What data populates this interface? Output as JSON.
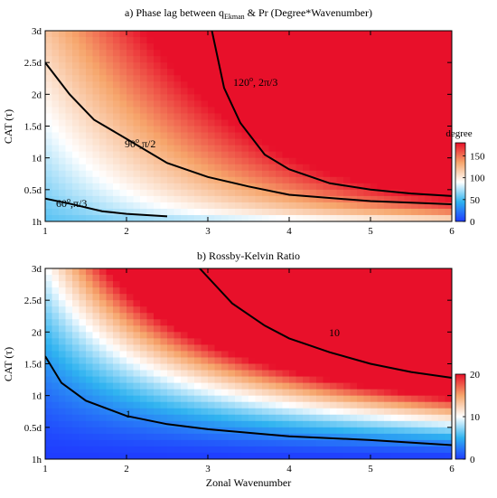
{
  "chart_data": [
    {
      "type": "heatmap",
      "title_prefix": "a) Phase lag between q",
      "title_subscript": "Ekman",
      "title_suffix": " & Pr (Degree*Wavenumber)",
      "xlabel": "",
      "ylabel": "CAT (τ)",
      "xlim": [
        1,
        6
      ],
      "x_ticks": [
        "1",
        "2",
        "3",
        "4",
        "5",
        "6"
      ],
      "ylim": [
        "1h",
        "3d"
      ],
      "y_ticks": [
        "1h",
        "0.5d",
        "1d",
        "1.5d",
        "2d",
        "2.5d",
        "3d"
      ],
      "colorbar": {
        "label": "degree",
        "range": [
          0,
          180
        ],
        "ticks": [
          "0",
          "50",
          "100",
          "150"
        ],
        "colormap": "blue-white-red"
      },
      "contours": [
        {
          "label": "120°, 2π/3",
          "label_base": "120",
          "label_sup": "o",
          "label_rest": ", 2π/3",
          "points": [
            [
              3.05,
              3.0
            ],
            [
              3.2,
              2.1
            ],
            [
              3.4,
              1.55
            ],
            [
              3.7,
              1.05
            ],
            [
              4.0,
              0.82
            ],
            [
              4.5,
              0.6
            ],
            [
              5.0,
              0.5
            ],
            [
              5.5,
              0.44
            ],
            [
              6.0,
              0.4
            ]
          ]
        },
        {
          "label": "90°,π/2",
          "label_base": "90",
          "label_sup": "o",
          "label_rest": ",π/2",
          "points": [
            [
              1.0,
              2.5
            ],
            [
              1.3,
              2.0
            ],
            [
              1.6,
              1.6
            ],
            [
              2.0,
              1.3
            ],
            [
              2.5,
              0.92
            ],
            [
              3.0,
              0.7
            ],
            [
              3.5,
              0.55
            ],
            [
              4.0,
              0.42
            ],
            [
              5.0,
              0.32
            ],
            [
              6.0,
              0.27
            ]
          ]
        },
        {
          "label": "60°,π/3",
          "label_base": "60",
          "label_sup": "o",
          "label_rest": ",π/3",
          "points": [
            [
              1.0,
              0.36
            ],
            [
              1.3,
              0.28
            ],
            [
              1.7,
              0.16
            ],
            [
              2.0,
              0.12
            ],
            [
              2.5,
              0.08
            ]
          ]
        }
      ]
    },
    {
      "type": "heatmap",
      "title": "b) Rossby-Kelvin Ratio",
      "xlabel": "Zonal Wavenumber",
      "ylabel": "CAT (τ)",
      "xlim": [
        1,
        6
      ],
      "x_ticks": [
        "1",
        "2",
        "3",
        "4",
        "5",
        "6"
      ],
      "ylim": [
        "1h",
        "3d"
      ],
      "y_ticks": [
        "1h",
        "0.5d",
        "1d",
        "1.5d",
        "2d",
        "2.5d",
        "3d"
      ],
      "colorbar": {
        "label": "",
        "range": [
          0,
          20
        ],
        "ticks": [
          "0",
          "10",
          "20"
        ],
        "colormap": "blue-white-red"
      },
      "contours": [
        {
          "label": "10",
          "points": [
            [
              2.9,
              3.0
            ],
            [
              3.3,
              2.45
            ],
            [
              3.7,
              2.1
            ],
            [
              4.0,
              1.9
            ],
            [
              4.5,
              1.68
            ],
            [
              5.0,
              1.5
            ],
            [
              5.5,
              1.37
            ],
            [
              6.0,
              1.28
            ]
          ]
        },
        {
          "label": "1",
          "points": [
            [
              1.0,
              1.62
            ],
            [
              1.2,
              1.2
            ],
            [
              1.5,
              0.92
            ],
            [
              2.0,
              0.68
            ],
            [
              2.5,
              0.55
            ],
            [
              3.0,
              0.47
            ],
            [
              4.0,
              0.36
            ],
            [
              5.0,
              0.3
            ],
            [
              6.0,
              0.22
            ]
          ]
        }
      ]
    }
  ]
}
